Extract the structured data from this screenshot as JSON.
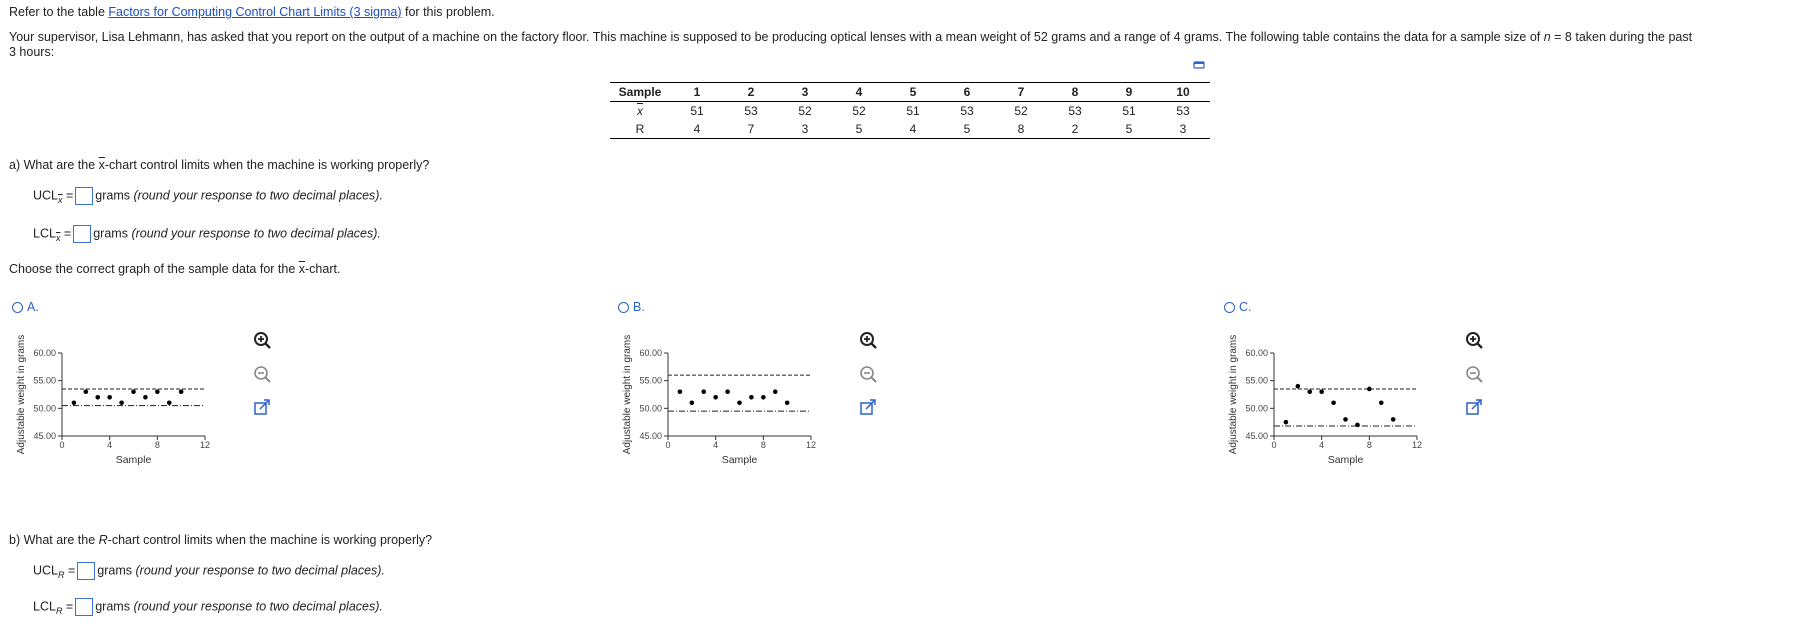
{
  "intro": {
    "prefix": "Refer to the table ",
    "link": "Factors for Computing Control Chart Limits (3 sigma)",
    "suffix": " for this problem."
  },
  "problem": {
    "text_a": "Your supervisor, Lisa Lehmann, has asked that you report on the output of a machine on the factory floor. This machine is supposed to be producing optical lenses with a mean weight of 52 grams and a range of 4 grams. The following table contains the data for a sample size of ",
    "n_label": "n",
    "n_value": " = 8",
    "text_b": " taken during the past",
    "text_c": "3 hours:"
  },
  "table": {
    "header_label": "Sample",
    "samples": [
      "1",
      "2",
      "3",
      "4",
      "5",
      "6",
      "7",
      "8",
      "9",
      "10"
    ],
    "xbar_label": "x",
    "xbar": [
      "51",
      "53",
      "52",
      "52",
      "51",
      "53",
      "52",
      "53",
      "51",
      "53"
    ],
    "r_label": "R",
    "r": [
      "4",
      "7",
      "3",
      "5",
      "4",
      "5",
      "8",
      "2",
      "5",
      "3"
    ]
  },
  "part_a": {
    "question_pre": "a) What are the ",
    "question_x": "x",
    "question_post": "-chart control limits when the machine is working properly?",
    "ucl_label": "UCL",
    "lcl_label": "LCL",
    "sub": "x",
    "unit": "grams",
    "hint": "(round your response to two decimal places)."
  },
  "choose": {
    "pre": "Choose the correct graph of the sample data for the ",
    "x": "x",
    "post": "-chart."
  },
  "options": [
    {
      "label": "A."
    },
    {
      "label": "B."
    },
    {
      "label": "C."
    }
  ],
  "chart_axes": {
    "ylabel": "Adjustable weight in grams",
    "xlabel": "Sample",
    "yticks": [
      "60.00",
      "55.00",
      "50.00",
      "45.00"
    ],
    "xticks": [
      "0",
      "4",
      "8",
      "12"
    ]
  },
  "chart_data": [
    {
      "type": "scatter",
      "xlabel": "Sample",
      "ylabel": "Adjustable weight in grams",
      "ylim": [
        45,
        60
      ],
      "xlim": [
        0,
        12
      ],
      "x": [
        1,
        2,
        3,
        4,
        5,
        6,
        7,
        8,
        9,
        10
      ],
      "y": [
        51,
        53,
        52,
        52,
        51,
        53,
        52,
        53,
        51,
        53
      ],
      "ucl": 53.5,
      "lcl": 50.5
    },
    {
      "type": "scatter",
      "xlabel": "Sample",
      "ylabel": "Adjustable weight in grams",
      "ylim": [
        45,
        60
      ],
      "xlim": [
        0,
        12
      ],
      "x": [
        1,
        2,
        3,
        4,
        5,
        6,
        7,
        8,
        9,
        10
      ],
      "y": [
        53,
        51,
        53,
        52,
        53,
        51,
        52,
        52,
        53,
        51
      ],
      "ucl": 56,
      "lcl": 49.5
    },
    {
      "type": "scatter",
      "xlabel": "Sample",
      "ylabel": "Adjustable weight in grams",
      "ylim": [
        45,
        60
      ],
      "xlim": [
        0,
        12
      ],
      "x": [
        1,
        2,
        3,
        4,
        5,
        6,
        7,
        8,
        9,
        10
      ],
      "y": [
        47.5,
        54,
        53,
        53,
        51,
        48,
        47,
        53.5,
        51,
        48
      ],
      "ucl": 53.5,
      "lcl": 46.8
    }
  ],
  "part_b": {
    "question_pre": "b) What are the ",
    "question_r": "R",
    "question_post": "-chart control limits when the machine is working properly?",
    "ucl_label": "UCL",
    "lcl_label": "LCL",
    "sub": "R",
    "unit": "grams",
    "hint": "(round your response to two decimal places)."
  }
}
